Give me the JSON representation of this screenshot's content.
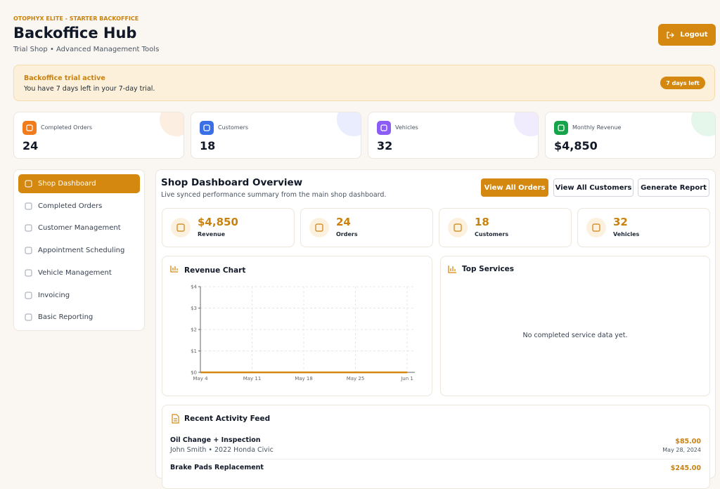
{
  "header": {
    "eyebrow": "OTOPHYX ELITE - STARTER BACKOFFICE",
    "title": "Backoffice Hub",
    "subtitle": "Trial Shop • Advanced Management Tools",
    "logout": "Logout"
  },
  "trial": {
    "title": "Backoffice trial active",
    "message": "You have 7 days left in your 7-day trial.",
    "badge": "7 days left"
  },
  "stats": [
    {
      "label": "Completed Orders",
      "value": "24"
    },
    {
      "label": "Customers",
      "value": "18"
    },
    {
      "label": "Vehicles",
      "value": "32"
    },
    {
      "label": "Monthly Revenue",
      "value": "$4,850"
    }
  ],
  "sidebar": {
    "items": [
      "Shop Dashboard",
      "Completed Orders",
      "Customer Management",
      "Appointment Scheduling",
      "Vehicle Management",
      "Invoicing",
      "Basic Reporting"
    ]
  },
  "overview": {
    "title": "Shop Dashboard Overview",
    "subtitle": "Live synced performance summary from the main shop dashboard.",
    "buttons": [
      "View All Orders",
      "View All Customers",
      "Generate Report"
    ],
    "metrics": [
      {
        "value": "$4,850",
        "label": "Revenue"
      },
      {
        "value": "24",
        "label": "Orders"
      },
      {
        "value": "18",
        "label": "Customers"
      },
      {
        "value": "32",
        "label": "Vehicles"
      }
    ]
  },
  "chart_data": {
    "type": "line",
    "title": "Revenue Chart",
    "categories": [
      "May 4",
      "May 11",
      "May 18",
      "May 25",
      "Jun 1"
    ],
    "values": [
      0,
      0,
      0,
      0,
      0
    ],
    "color": "#d4880f",
    "ylim": [
      0,
      4
    ],
    "yticks": [
      {
        "value": 0,
        "label": "$0"
      },
      {
        "value": 1,
        "label": "$1"
      },
      {
        "value": 2,
        "label": "$2"
      },
      {
        "value": 3,
        "label": "$3"
      },
      {
        "value": 4,
        "label": "$4"
      }
    ],
    "grid": true
  },
  "top_services": {
    "title": "Top Services",
    "empty": "No completed service data yet."
  },
  "activity": {
    "title": "Recent Activity Feed",
    "items": [
      {
        "title": "Oil Change + Inspection",
        "detail": "John Smith • 2022 Honda Civic",
        "amount": "$85.00",
        "date": "May 28, 2024"
      },
      {
        "title": "Brake Pads Replacement",
        "amount": "$245.00"
      }
    ]
  }
}
